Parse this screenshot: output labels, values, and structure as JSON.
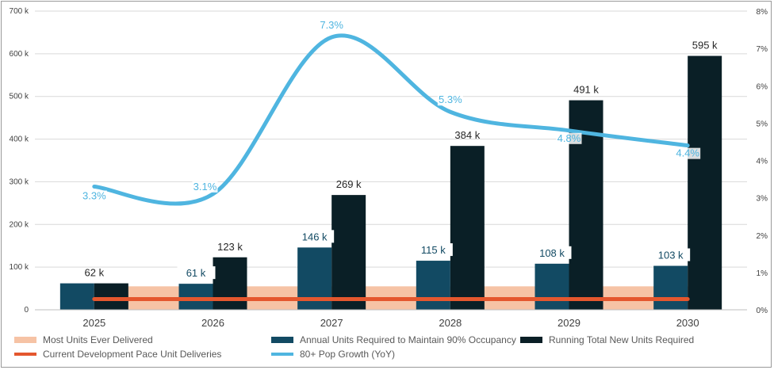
{
  "chart_data": {
    "type": "bar",
    "categories": [
      "2025",
      "2026",
      "2027",
      "2028",
      "2029",
      "2030"
    ],
    "y_left": {
      "min": 0,
      "max": 700000,
      "step": 100000,
      "tick_labels": [
        "0",
        "100 k",
        "200 k",
        "300 k",
        "400 k",
        "500 k",
        "600 k",
        "700 k"
      ]
    },
    "y_right": {
      "min": 0,
      "max": 8,
      "step": 1,
      "tick_labels": [
        "0%",
        "1%",
        "2%",
        "3%",
        "4%",
        "5%",
        "6%",
        "7%",
        "8%"
      ]
    },
    "grid": true,
    "legend_position": "bottom",
    "series": [
      {
        "name": "Most Units Ever Delivered",
        "kind": "band",
        "axis": "left",
        "values": [
          55000,
          55000,
          55000,
          55000,
          55000,
          55000
        ],
        "color": "#f6c3a5"
      },
      {
        "name": "Annual Units Required to Maintain 90% Occupancy",
        "kind": "bar",
        "axis": "left",
        "values": [
          62000,
          61000,
          146000,
          115000,
          108000,
          103000
        ],
        "labels": [
          "",
          "61 k",
          "146 k",
          "115 k",
          "108 k",
          "103 k"
        ],
        "color": "#124a63"
      },
      {
        "name": "Running Total New Units Required",
        "kind": "bar",
        "axis": "left",
        "values": [
          62000,
          123000,
          269000,
          384000,
          491000,
          595000
        ],
        "labels": [
          "62 k",
          "123 k",
          "269 k",
          "384 k",
          "491 k",
          "595 k"
        ],
        "color": "#0a1f26"
      },
      {
        "name": "Current Development Pace Unit Deliveries",
        "kind": "line",
        "axis": "left",
        "values": [
          25000,
          25000,
          25000,
          25000,
          25000,
          25000
        ],
        "color": "#e4572e"
      },
      {
        "name": "80+ Pop Growth (YoY)",
        "kind": "smooth-line",
        "axis": "right",
        "values": [
          3.3,
          3.1,
          7.3,
          5.3,
          4.8,
          4.4
        ],
        "labels": [
          "3.3%",
          "3.1%",
          "7.3%",
          "5.3%",
          "4.8%",
          "4.4%"
        ],
        "color": "#4fb5e0"
      }
    ],
    "legend": [
      "Most Units Ever Delivered",
      "Annual Units Required to Maintain 90% Occupancy",
      "Running Total New Units Required",
      "Current Development Pace Unit Deliveries",
      "80+ Pop Growth (YoY)"
    ]
  }
}
